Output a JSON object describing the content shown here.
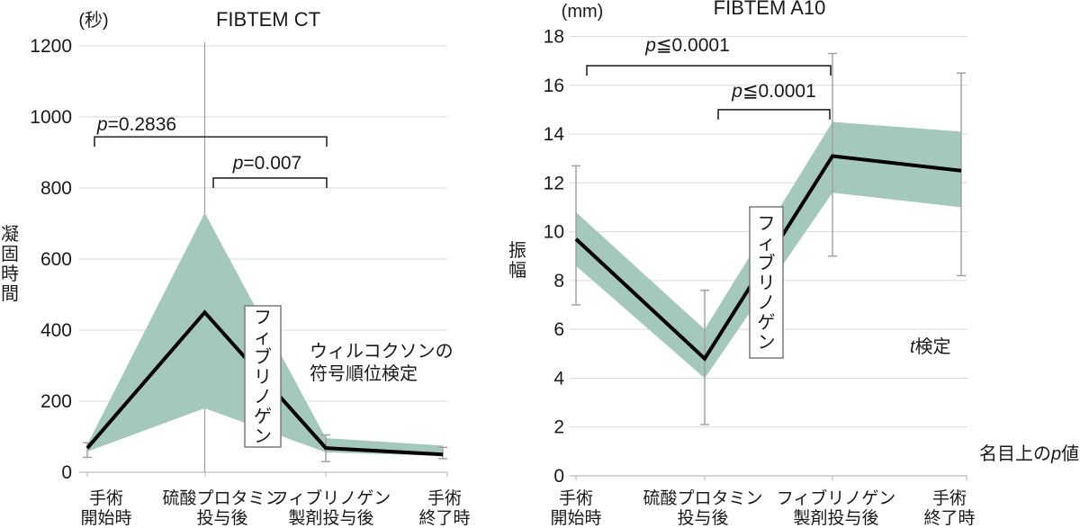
{
  "figure": {
    "background_color": "#ffffff",
    "band_color": "#a4c8bb",
    "line_color": "#000000",
    "grid_color": "#d9d9d9",
    "axis_color": "#bdbdbd",
    "errorbar_color": "#9e9e9e"
  },
  "chart_data": [
    {
      "type": "line",
      "title": "FIBTEM CT",
      "unit_label": "(秒)",
      "ylabel": "凝固時間",
      "categories": [
        [
          "手術",
          "開始時"
        ],
        [
          "硫酸プロタミン",
          "投与後"
        ],
        [
          "フィブリノゲン",
          "製剤投与後"
        ],
        [
          "手術",
          "終了時"
        ]
      ],
      "ylim": [
        0,
        1200
      ],
      "yticks": [
        0,
        200,
        400,
        600,
        800,
        1000,
        1200
      ],
      "mean": [
        68,
        450,
        68,
        50
      ],
      "band_upper": [
        78,
        730,
        96,
        75
      ],
      "band_lower": [
        58,
        180,
        56,
        46
      ],
      "error_bars": [
        {
          "category": 0,
          "low": 42,
          "high": 83
        },
        {
          "category": 2,
          "low": 30,
          "high": 105
        },
        {
          "category": 3,
          "low": 38,
          "high": 70
        }
      ],
      "p_brackets": [
        {
          "label": "p=0.2836",
          "from": 0,
          "to": 2,
          "y": 944
        },
        {
          "label": "p=0.007",
          "from": 1,
          "to": 2,
          "y": 828
        }
      ],
      "reference_line_category": 1,
      "box_annotation": "フィブリノゲン",
      "note_lines": [
        "ウィルコクソンの",
        "符号順位検定"
      ]
    },
    {
      "type": "line",
      "title": "FIBTEM A10",
      "unit_label": "(mm)",
      "ylabel": "振幅",
      "categories": [
        [
          "手術",
          "開始時"
        ],
        [
          "硫酸プロタミン",
          "投与後"
        ],
        [
          "フィブリノゲン",
          "製剤投与後"
        ],
        [
          "手術",
          "終了時"
        ]
      ],
      "ylim": [
        0,
        18
      ],
      "yticks": [
        0,
        2,
        4,
        6,
        8,
        10,
        12,
        14,
        16,
        18
      ],
      "mean": [
        9.7,
        4.8,
        13.1,
        12.5
      ],
      "band_upper": [
        10.8,
        6.0,
        14.5,
        14.1
      ],
      "band_lower": [
        8.6,
        4.0,
        11.6,
        11.0
      ],
      "error_bars": [
        {
          "category": 0,
          "low": 7.0,
          "high": 12.7
        },
        {
          "category": 1,
          "low": 2.1,
          "high": 7.6
        },
        {
          "category": 2,
          "low": 9.0,
          "high": 17.3
        },
        {
          "category": 3,
          "low": 8.2,
          "high": 16.5
        }
      ],
      "p_brackets": [
        {
          "label": "p≦0.0001",
          "from": 0,
          "to": 2,
          "y": 16.8
        },
        {
          "label": "p≦0.0001",
          "from": 1,
          "to": 2,
          "y": 15.0
        }
      ],
      "box_annotation": "フィブリノゲン",
      "note_lines": [
        "t検定"
      ],
      "corner_note": "名目上のp値"
    }
  ]
}
